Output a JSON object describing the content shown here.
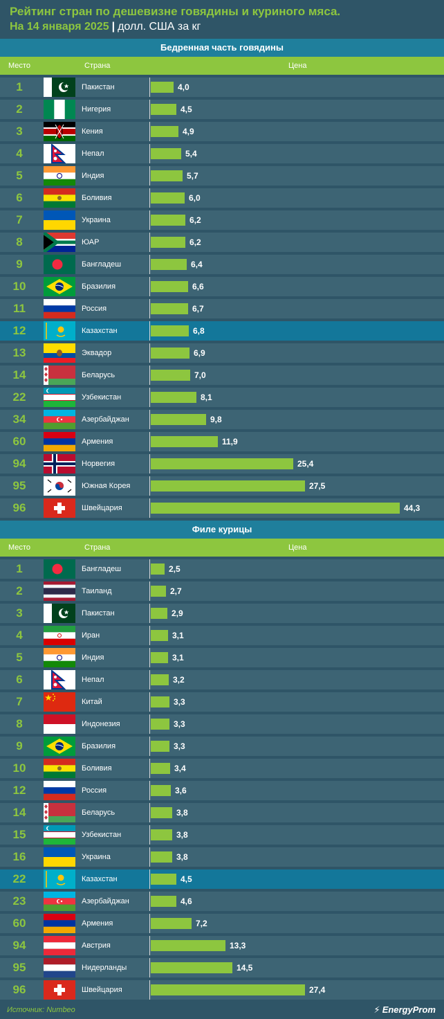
{
  "header": {
    "title": "Рейтинг стран по дешевизне говядины и куриного мяса.",
    "date": "На 14 января 2025",
    "separator": "|",
    "unit": "долл. США за кг"
  },
  "columns": {
    "rank": "Место",
    "country": "Страна",
    "price": "Цена"
  },
  "colors": {
    "accent": "#8dc63f",
    "background": "#2f5567",
    "highlight": "#13779a",
    "section": "#1f7f9c"
  },
  "chart_data": [
    {
      "type": "bar",
      "title": "Бедренная часть говядины",
      "xlim": [
        0,
        44.3
      ],
      "highlight": "Казахстан",
      "rows": [
        {
          "rank": "1",
          "country": "Пакистан",
          "value": 4.0,
          "label": "4,0",
          "flag": "pk"
        },
        {
          "rank": "2",
          "country": "Нигерия",
          "value": 4.5,
          "label": "4,5",
          "flag": "ng"
        },
        {
          "rank": "3",
          "country": "Кения",
          "value": 4.9,
          "label": "4,9",
          "flag": "ke"
        },
        {
          "rank": "4",
          "country": "Непал",
          "value": 5.4,
          "label": "5,4",
          "flag": "np"
        },
        {
          "rank": "5",
          "country": "Индия",
          "value": 5.7,
          "label": "5,7",
          "flag": "in"
        },
        {
          "rank": "6",
          "country": "Боливия",
          "value": 6.0,
          "label": "6,0",
          "flag": "bo"
        },
        {
          "rank": "7",
          "country": "Украина",
          "value": 6.2,
          "label": "6,2",
          "flag": "ua"
        },
        {
          "rank": "8",
          "country": "ЮАР",
          "value": 6.2,
          "label": "6,2",
          "flag": "za"
        },
        {
          "rank": "9",
          "country": "Бангладеш",
          "value": 6.4,
          "label": "6,4",
          "flag": "bd"
        },
        {
          "rank": "10",
          "country": "Бразилия",
          "value": 6.6,
          "label": "6,6",
          "flag": "br"
        },
        {
          "rank": "11",
          "country": "Россия",
          "value": 6.7,
          "label": "6,7",
          "flag": "ru"
        },
        {
          "rank": "12",
          "country": "Казахстан",
          "value": 6.8,
          "label": "6,8",
          "flag": "kz"
        },
        {
          "rank": "13",
          "country": "Эквадор",
          "value": 6.9,
          "label": "6,9",
          "flag": "ec"
        },
        {
          "rank": "14",
          "country": "Беларусь",
          "value": 7.0,
          "label": "7,0",
          "flag": "by"
        },
        {
          "rank": "22",
          "country": "Узбекистан",
          "value": 8.1,
          "label": "8,1",
          "flag": "uz"
        },
        {
          "rank": "34",
          "country": "Азербайджан",
          "value": 9.8,
          "label": "9,8",
          "flag": "az"
        },
        {
          "rank": "60",
          "country": "Армения",
          "value": 11.9,
          "label": "11,9",
          "flag": "am"
        },
        {
          "rank": "94",
          "country": "Норвегия",
          "value": 25.4,
          "label": "25,4",
          "flag": "no"
        },
        {
          "rank": "95",
          "country": "Южная Корея",
          "value": 27.5,
          "label": "27,5",
          "flag": "kr"
        },
        {
          "rank": "96",
          "country": "Швейцария",
          "value": 44.3,
          "label": "44,3",
          "flag": "ch"
        }
      ]
    },
    {
      "type": "bar",
      "title": "Филе курицы",
      "xlim": [
        0,
        44.3
      ],
      "highlight": "Казахстан",
      "rows": [
        {
          "rank": "1",
          "country": "Бангладеш",
          "value": 2.5,
          "label": "2,5",
          "flag": "bd"
        },
        {
          "rank": "2",
          "country": "Таиланд",
          "value": 2.7,
          "label": "2,7",
          "flag": "th"
        },
        {
          "rank": "3",
          "country": "Пакистан",
          "value": 2.9,
          "label": "2,9",
          "flag": "pk"
        },
        {
          "rank": "4",
          "country": "Иран",
          "value": 3.1,
          "label": "3,1",
          "flag": "ir"
        },
        {
          "rank": "5",
          "country": "Индия",
          "value": 3.1,
          "label": "3,1",
          "flag": "in"
        },
        {
          "rank": "6",
          "country": "Непал",
          "value": 3.2,
          "label": "3,2",
          "flag": "np"
        },
        {
          "rank": "7",
          "country": "Китай",
          "value": 3.3,
          "label": "3,3",
          "flag": "cn"
        },
        {
          "rank": "8",
          "country": "Индонезия",
          "value": 3.3,
          "label": "3,3",
          "flag": "id"
        },
        {
          "rank": "9",
          "country": "Бразилия",
          "value": 3.3,
          "label": "3,3",
          "flag": "br"
        },
        {
          "rank": "10",
          "country": "Боливия",
          "value": 3.4,
          "label": "3,4",
          "flag": "bo"
        },
        {
          "rank": "12",
          "country": "Россия",
          "value": 3.6,
          "label": "3,6",
          "flag": "ru"
        },
        {
          "rank": "14",
          "country": "Беларусь",
          "value": 3.8,
          "label": "3,8",
          "flag": "by"
        },
        {
          "rank": "15",
          "country": "Узбекистан",
          "value": 3.8,
          "label": "3,8",
          "flag": "uz"
        },
        {
          "rank": "16",
          "country": "Украина",
          "value": 3.8,
          "label": "3,8",
          "flag": "ua"
        },
        {
          "rank": "22",
          "country": "Казахстан",
          "value": 4.5,
          "label": "4,5",
          "flag": "kz"
        },
        {
          "rank": "23",
          "country": "Азербайджан",
          "value": 4.6,
          "label": "4,6",
          "flag": "az"
        },
        {
          "rank": "60",
          "country": "Армения",
          "value": 7.2,
          "label": "7,2",
          "flag": "am"
        },
        {
          "rank": "94",
          "country": "Австрия",
          "value": 13.3,
          "label": "13,3",
          "flag": "at"
        },
        {
          "rank": "95",
          "country": "Нидерланды",
          "value": 14.5,
          "label": "14,5",
          "flag": "nl"
        },
        {
          "rank": "96",
          "country": "Швейцария",
          "value": 27.4,
          "label": "27,4",
          "flag": "ch"
        }
      ]
    }
  ],
  "footer": {
    "source_label": "Источник:",
    "source": "Numbeo",
    "logo": "EnergyProm"
  }
}
